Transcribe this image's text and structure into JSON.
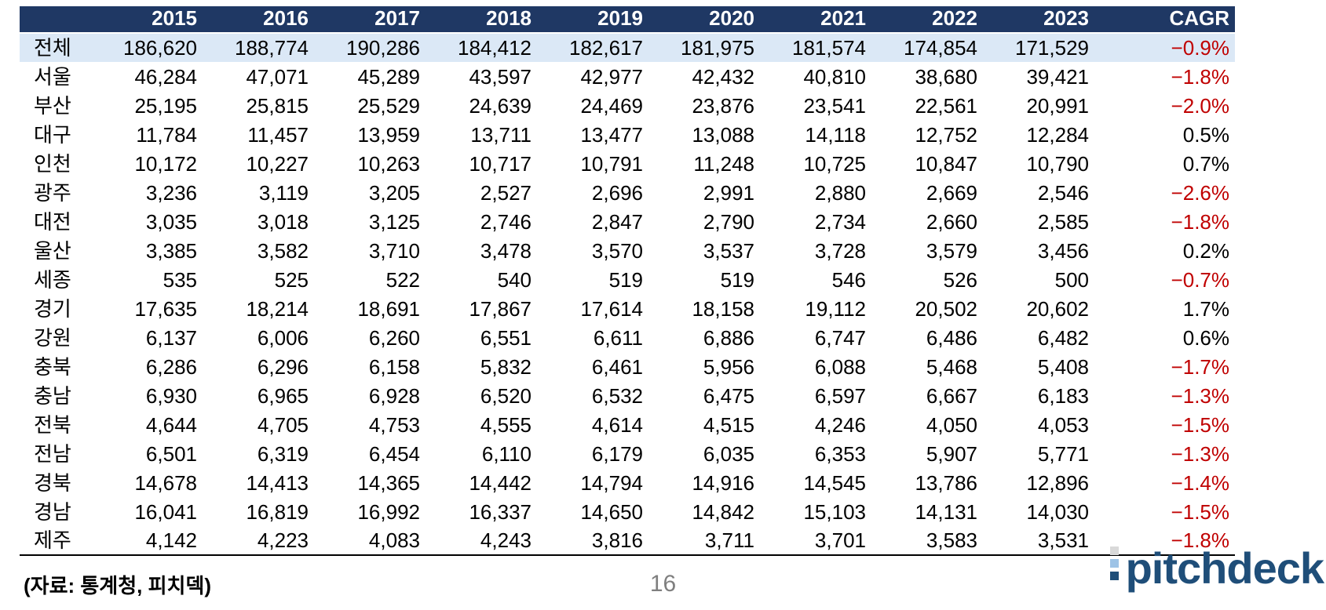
{
  "colors": {
    "header_bg": "#1F3864",
    "highlight_row_bg": "#DBE8F6",
    "negative_cagr_red": "#C00000",
    "logo_navy": "#1F4E79",
    "logo_square_gray": "#D9D9D9",
    "logo_square_lightblue": "#9DC3E6",
    "page_number_gray": "#7F7F7F"
  },
  "table": {
    "columns": [
      "",
      "2015",
      "2016",
      "2017",
      "2018",
      "2019",
      "2020",
      "2021",
      "2022",
      "2023",
      "CAGR"
    ],
    "rows": [
      {
        "region": "전체",
        "highlight": true,
        "values": [
          "186,620",
          "188,774",
          "190,286",
          "184,412",
          "182,617",
          "181,975",
          "181,574",
          "174,854",
          "171,529"
        ],
        "cagr": "−0.9%"
      },
      {
        "region": "서울",
        "highlight": false,
        "values": [
          "46,284",
          "47,071",
          "45,289",
          "43,597",
          "42,977",
          "42,432",
          "40,810",
          "38,680",
          "39,421"
        ],
        "cagr": "−1.8%"
      },
      {
        "region": "부산",
        "highlight": false,
        "values": [
          "25,195",
          "25,815",
          "25,529",
          "24,639",
          "24,469",
          "23,876",
          "23,541",
          "22,561",
          "20,991"
        ],
        "cagr": "−2.0%"
      },
      {
        "region": "대구",
        "highlight": false,
        "values": [
          "11,784",
          "11,457",
          "13,959",
          "13,711",
          "13,477",
          "13,088",
          "14,118",
          "12,752",
          "12,284"
        ],
        "cagr": "0.5%"
      },
      {
        "region": "인천",
        "highlight": false,
        "values": [
          "10,172",
          "10,227",
          "10,263",
          "10,717",
          "10,791",
          "11,248",
          "10,725",
          "10,847",
          "10,790"
        ],
        "cagr": "0.7%"
      },
      {
        "region": "광주",
        "highlight": false,
        "values": [
          "3,236",
          "3,119",
          "3,205",
          "2,527",
          "2,696",
          "2,991",
          "2,880",
          "2,669",
          "2,546"
        ],
        "cagr": "−2.6%"
      },
      {
        "region": "대전",
        "highlight": false,
        "values": [
          "3,035",
          "3,018",
          "3,125",
          "2,746",
          "2,847",
          "2,790",
          "2,734",
          "2,660",
          "2,585"
        ],
        "cagr": "−1.8%"
      },
      {
        "region": "울산",
        "highlight": false,
        "values": [
          "3,385",
          "3,582",
          "3,710",
          "3,478",
          "3,570",
          "3,537",
          "3,728",
          "3,579",
          "3,456"
        ],
        "cagr": "0.2%"
      },
      {
        "region": "세종",
        "highlight": false,
        "values": [
          "535",
          "525",
          "522",
          "540",
          "519",
          "519",
          "546",
          "526",
          "500"
        ],
        "cagr": "−0.7%"
      },
      {
        "region": "경기",
        "highlight": false,
        "values": [
          "17,635",
          "18,214",
          "18,691",
          "17,867",
          "17,614",
          "18,158",
          "19,112",
          "20,502",
          "20,602"
        ],
        "cagr": "1.7%"
      },
      {
        "region": "강원",
        "highlight": false,
        "values": [
          "6,137",
          "6,006",
          "6,260",
          "6,551",
          "6,611",
          "6,886",
          "6,747",
          "6,486",
          "6,482"
        ],
        "cagr": "0.6%"
      },
      {
        "region": "충북",
        "highlight": false,
        "values": [
          "6,286",
          "6,296",
          "6,158",
          "5,832",
          "6,461",
          "5,956",
          "6,088",
          "5,468",
          "5,408"
        ],
        "cagr": "−1.7%"
      },
      {
        "region": "충남",
        "highlight": false,
        "values": [
          "6,930",
          "6,965",
          "6,928",
          "6,520",
          "6,532",
          "6,475",
          "6,597",
          "6,667",
          "6,183"
        ],
        "cagr": "−1.3%"
      },
      {
        "region": "전북",
        "highlight": false,
        "values": [
          "4,644",
          "4,705",
          "4,753",
          "4,555",
          "4,614",
          "4,515",
          "4,246",
          "4,050",
          "4,053"
        ],
        "cagr": "−1.5%"
      },
      {
        "region": "전남",
        "highlight": false,
        "values": [
          "6,501",
          "6,319",
          "6,454",
          "6,110",
          "6,179",
          "6,035",
          "6,353",
          "5,907",
          "5,771"
        ],
        "cagr": "−1.3%"
      },
      {
        "region": "경북",
        "highlight": false,
        "values": [
          "14,678",
          "14,413",
          "14,365",
          "14,442",
          "14,794",
          "14,916",
          "14,545",
          "13,786",
          "12,896"
        ],
        "cagr": "−1.4%"
      },
      {
        "region": "경남",
        "highlight": false,
        "values": [
          "16,041",
          "16,819",
          "16,992",
          "16,337",
          "14,650",
          "14,842",
          "15,103",
          "14,131",
          "14,030"
        ],
        "cagr": "−1.5%"
      },
      {
        "region": "제주",
        "highlight": false,
        "values": [
          "4,142",
          "4,223",
          "4,083",
          "4,243",
          "3,816",
          "3,711",
          "3,701",
          "3,583",
          "3,531"
        ],
        "cagr": "−1.8%"
      }
    ]
  },
  "footer": {
    "source": "(자료: 통계청, 피치덱)",
    "page_number": "16",
    "logo_text": "pitchdeck"
  }
}
